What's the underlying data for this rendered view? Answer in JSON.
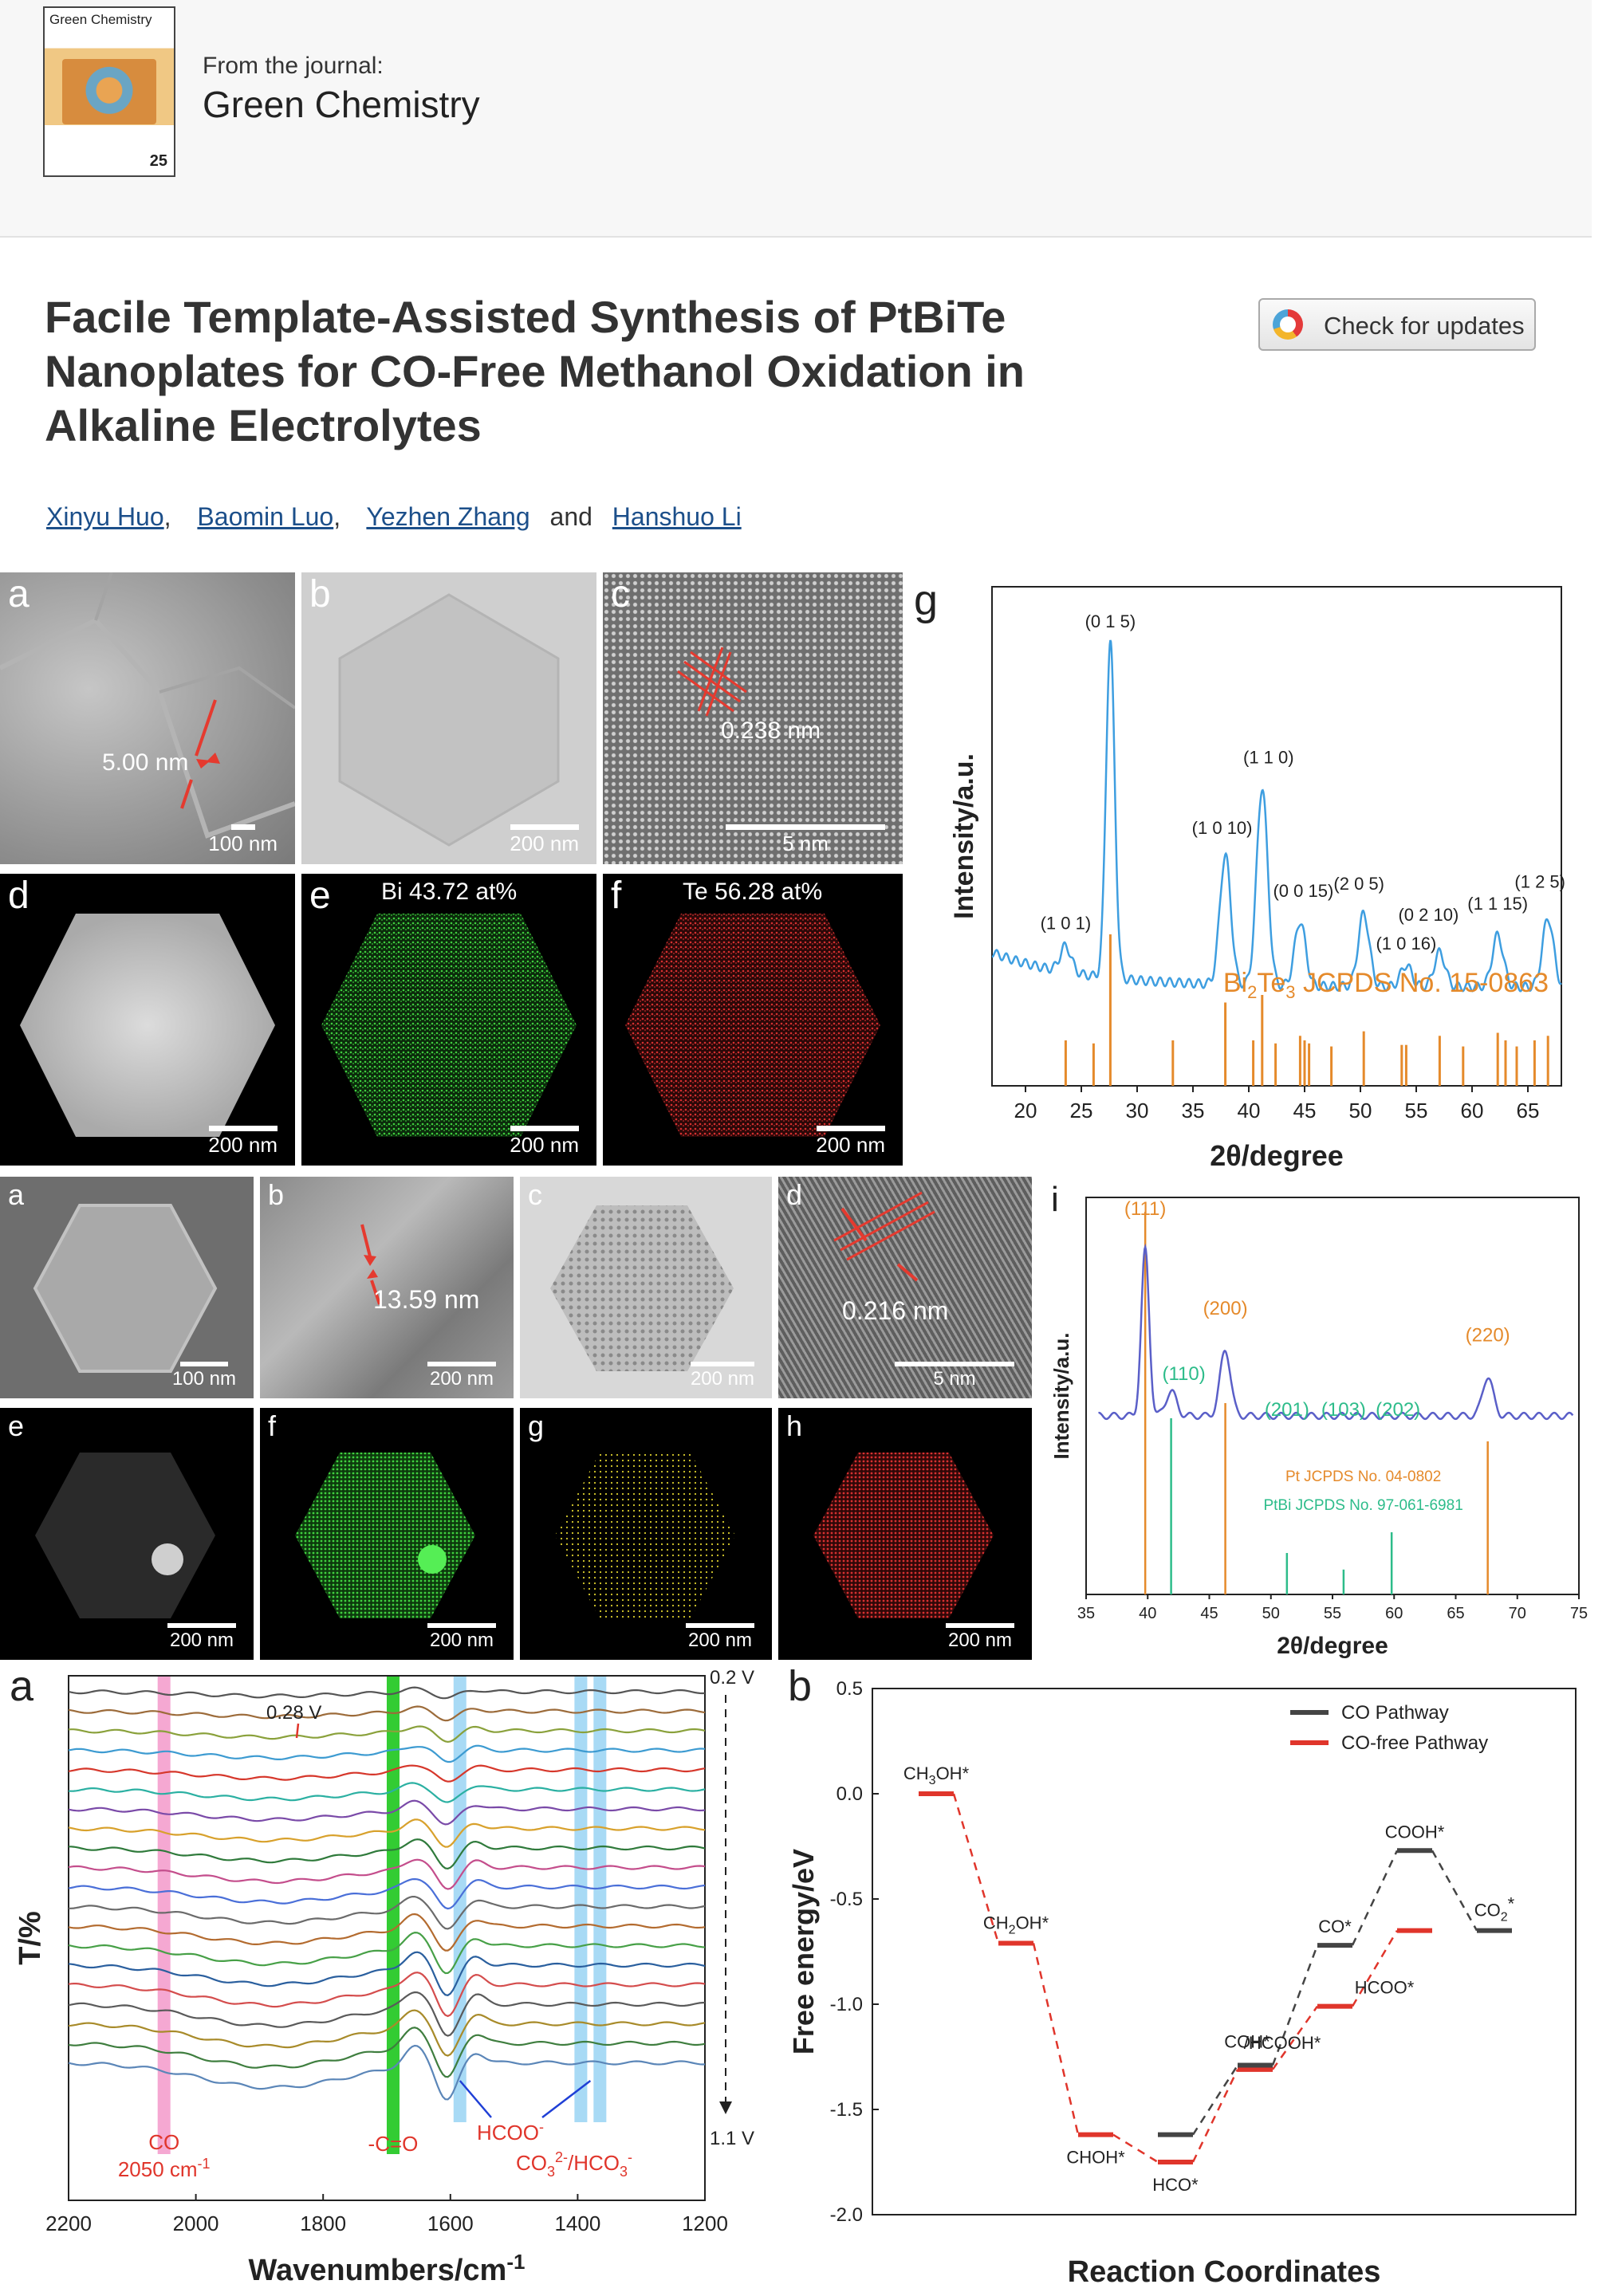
{
  "header": {
    "cover_title": "Green Chemistry",
    "cover_number": "25",
    "from_label": "From the journal:",
    "journal_name": "Green Chemistry"
  },
  "article": {
    "title_lines": [
      "Facile Template-Assisted Synthesis of PtBiTe",
      "Nanoplates for CO-Free Methanol Oxidation in",
      "Alkaline Electrolytes"
    ],
    "check_updates_label": "Check for updates",
    "authors": [
      "Xinyu Huo",
      "Baomin Luo",
      "Yezhen Zhang",
      "Hanshuo Li"
    ],
    "author_sep": ",",
    "author_and": "and"
  },
  "fig1": {
    "panels": {
      "a": {
        "label": "a",
        "scale": "100 nm",
        "annotation": "5.00 nm"
      },
      "b": {
        "label": "b",
        "scale": "200 nm"
      },
      "c": {
        "label": "c",
        "scale": "5 nm",
        "annotation": "0.238 nm"
      },
      "d": {
        "label": "d",
        "scale": "200 nm"
      },
      "e": {
        "label": "e",
        "scale": "200 nm",
        "annotation": "Bi 43.72 at%"
      },
      "f": {
        "label": "f",
        "scale": "200 nm",
        "annotation": "Te 56.28 at%"
      },
      "g": {
        "label": "g"
      }
    }
  },
  "fig2": {
    "panels": {
      "a": {
        "label": "a",
        "scale": "100 nm"
      },
      "b": {
        "label": "b",
        "scale": "200 nm",
        "annotation": "13.59 nm"
      },
      "c": {
        "label": "c",
        "scale": "200 nm"
      },
      "d": {
        "label": "d",
        "scale": "5 nm",
        "annotation": "0.216 nm"
      },
      "e": {
        "label": "e",
        "scale": "200 nm"
      },
      "f": {
        "label": "f",
        "scale": "200 nm"
      },
      "g": {
        "label": "g",
        "scale": "200 nm"
      },
      "h": {
        "label": "h",
        "scale": "200 nm"
      },
      "i": {
        "label": "i"
      }
    }
  },
  "fig3": {
    "panel_a_label": "a",
    "panel_b_label": "b"
  },
  "colors": {
    "blue_curve": "#3e9ee0",
    "orange_ref": "#e58a2b",
    "green_ref": "#2dbc8a",
    "purple_curve": "#5a5fc8",
    "red": "#e0352b",
    "black_path": "#444444"
  },
  "chart_data": [
    {
      "type": "line",
      "panel": "Fig1 g",
      "xlabel": "2θ/degree",
      "ylabel": "Intensity/a.u.",
      "xlim": [
        17,
        68
      ],
      "xticks": [
        20,
        25,
        30,
        35,
        40,
        45,
        50,
        55,
        60,
        65
      ],
      "peaks": [
        {
          "x": 23.6,
          "h": 0.06,
          "label": "(1 0 1)"
        },
        {
          "x": 27.6,
          "h": 0.78,
          "label": "(0 1 5)"
        },
        {
          "x": 37.9,
          "h": 0.3,
          "label": "(1 0 10)"
        },
        {
          "x": 41.2,
          "h": 0.46,
          "label": "(1 1 0)"
        },
        {
          "x": 44.6,
          "h": 0.15,
          "label": "(0 0 15)"
        },
        {
          "x": 50.3,
          "h": 0.17,
          "label": "(2 0 5)"
        },
        {
          "x": 54.1,
          "h": 0.05,
          "label": "(1 0 16)"
        },
        {
          "x": 57.1,
          "h": 0.08,
          "label": "(0 2 10)"
        },
        {
          "x": 62.3,
          "h": 0.12,
          "label": "(1 1 15)"
        },
        {
          "x": 66.8,
          "h": 0.16,
          "label": "(1 2 5)"
        }
      ],
      "reference": {
        "name_prefix": "Bi",
        "name_sub1": "2",
        "name_mid": "Te",
        "name_sub2": "3",
        "name_suffix": " JCPDS No. 15-0863",
        "lines": [
          [
            23.6,
            0.3
          ],
          [
            26.1,
            0.28
          ],
          [
            27.6,
            1.0
          ],
          [
            33.2,
            0.3
          ],
          [
            37.9,
            0.55
          ],
          [
            40.4,
            0.3
          ],
          [
            41.2,
            0.6
          ],
          [
            42.4,
            0.28
          ],
          [
            44.6,
            0.33
          ],
          [
            45.0,
            0.3
          ],
          [
            45.4,
            0.28
          ],
          [
            47.4,
            0.26
          ],
          [
            50.3,
            0.36
          ],
          [
            53.7,
            0.27
          ],
          [
            54.1,
            0.27
          ],
          [
            57.1,
            0.33
          ],
          [
            59.2,
            0.26
          ],
          [
            62.3,
            0.35
          ],
          [
            63.0,
            0.3
          ],
          [
            64.0,
            0.26
          ],
          [
            65.6,
            0.3
          ],
          [
            66.8,
            0.33
          ]
        ]
      }
    },
    {
      "type": "line",
      "panel": "Fig2 i",
      "xlabel": "2θ/degree",
      "ylabel": "Intensity/a.u.",
      "xlim": [
        35,
        75
      ],
      "xticks": [
        35,
        40,
        45,
        50,
        55,
        60,
        65,
        70,
        75
      ],
      "peaks": [
        {
          "x": 39.8,
          "h": 0.8,
          "label": "(111)",
          "color": "orange"
        },
        {
          "x": 41.9,
          "h": 0.12,
          "label": "(110)",
          "color": "green"
        },
        {
          "x": 46.3,
          "h": 0.32,
          "label": "(200)",
          "color": "orange"
        },
        {
          "x": 51.3,
          "h": 0.0,
          "label": "(201)",
          "color": "green"
        },
        {
          "x": 55.9,
          "h": 0.0,
          "label": "(103)",
          "color": "green"
        },
        {
          "x": 59.8,
          "h": 0.0,
          "label": "(202)",
          "color": "green"
        },
        {
          "x": 67.6,
          "h": 0.19,
          "label": "(220)",
          "color": "orange"
        }
      ],
      "ref_pt_label": "Pt JCPDS No. 04-0802",
      "ref_ptbi_label": "PtBi JCPDS No. 97-061-6981",
      "pt_lines": [
        [
          39.8,
          1.0
        ],
        [
          46.3,
          0.5
        ],
        [
          67.6,
          0.4
        ]
      ],
      "ptbi_lines": [
        [
          41.9,
          0.85
        ],
        [
          51.3,
          0.2
        ],
        [
          55.9,
          0.12
        ],
        [
          59.8,
          0.3
        ]
      ]
    },
    {
      "type": "line",
      "panel": "Fig3 a",
      "xlabel": "Wavenumbers/cm",
      "xlabel_sup": "-1",
      "ylabel": "T/%",
      "xlim": [
        2200,
        1200
      ],
      "xticks": [
        2200,
        2000,
        1800,
        1600,
        1400,
        1200
      ],
      "potential_top": "0.2 V",
      "potential_bottom": "1.1 V",
      "annotation_028": "0.28 V",
      "band_co_label": "CO",
      "band_co_wavenumber": "2050 cm",
      "band_co_sup": "-1",
      "band_co_x": 2050,
      "band_cdo_label": "-C=O",
      "band_cdo_x": 1690,
      "band_hcoo_label": "HCOO",
      "band_hcoo_sup": "-",
      "band_hcoo_x": 1585,
      "band_carb_label_a": "CO",
      "band_carb_sub_a": "3",
      "band_carb_sup_a": "2-",
      "band_carb_label_b": "/HCO",
      "band_carb_sub_b": "3",
      "band_carb_sup_b": "-",
      "band_carb_x": [
        1395,
        1365
      ],
      "curve_count": 20,
      "curve_colors": [
        "#555555",
        "#9c6b3a",
        "#8aa13b",
        "#3d9bd1",
        "#d6372b",
        "#2bb0a2",
        "#7a4aa8",
        "#d8a12c",
        "#2f7a3b",
        "#c44e8c",
        "#4a6fd8",
        "#6b6b6b",
        "#b36b2f",
        "#47a047",
        "#2a5f9e",
        "#d44d4d",
        "#5a5a5a",
        "#a88b2a",
        "#3f7e3f",
        "#5b86b8"
      ]
    },
    {
      "type": "line",
      "panel": "Fig3 b",
      "xlabel": "Reaction Coordinates",
      "ylabel": "Free energy/eV",
      "ylim": [
        -2.0,
        0.5
      ],
      "yticks": [
        0.5,
        0.0,
        -0.5,
        -1.0,
        -1.5,
        -2.0
      ],
      "legend": [
        "CO  Pathway",
        "CO-free Pathway"
      ],
      "legend_position": "top-right",
      "co_pathway": [
        {
          "x": 4,
          "y": -1.62
        },
        {
          "x": 5,
          "y": -1.29
        },
        {
          "x": 6,
          "y": -0.72
        },
        {
          "x": 7,
          "y": -0.27
        },
        {
          "x": 8,
          "y": -0.65
        }
      ],
      "co_free_pathway": [
        {
          "x": 1,
          "y": 0.0
        },
        {
          "x": 2,
          "y": -0.71
        },
        {
          "x": 3,
          "y": -1.62
        },
        {
          "x": 4,
          "y": -1.75
        },
        {
          "x": 5,
          "y": -1.31
        },
        {
          "x": 6,
          "y": -1.01
        },
        {
          "x": 7,
          "y": -0.65
        }
      ],
      "species_labels": [
        "CH3OH*",
        "CH2OH*",
        "CHOH*",
        "HCO*",
        "COH*",
        "/HCOOH*",
        "CO*",
        "HCOO*",
        "COOH*",
        "CO2*"
      ]
    }
  ]
}
